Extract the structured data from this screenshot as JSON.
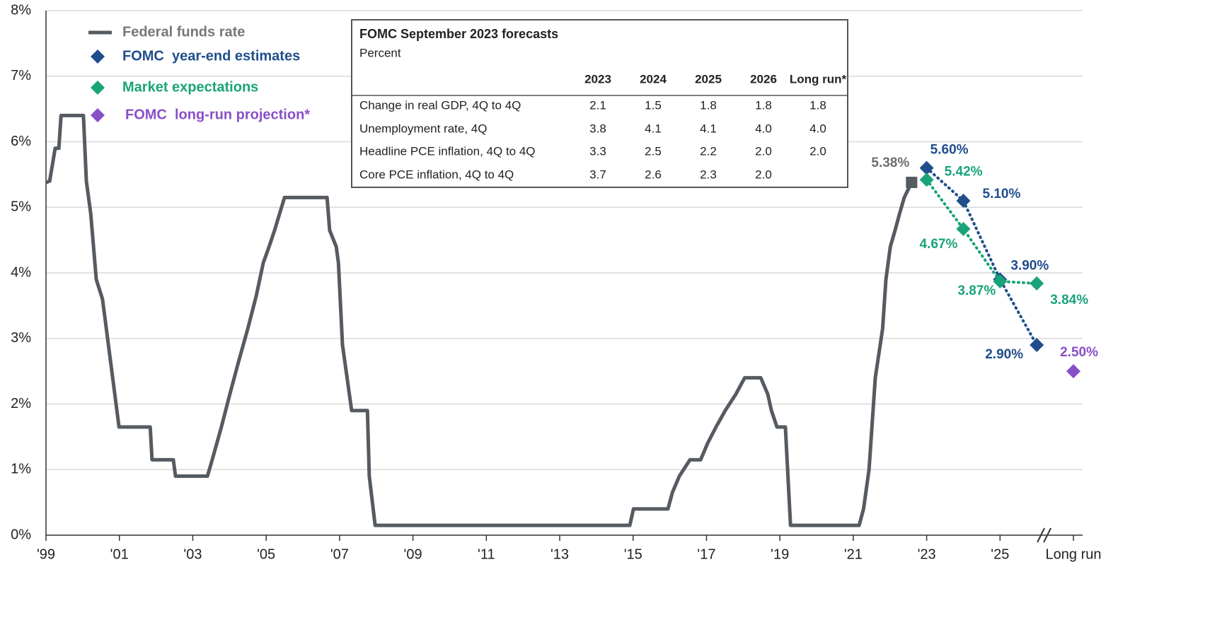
{
  "chart_data": {
    "type": "line",
    "xlim": [
      1999,
      2027.25
    ],
    "xticks": [
      {
        "value": 1999,
        "label": "'99"
      },
      {
        "value": 2001,
        "label": "'01"
      },
      {
        "value": 2003,
        "label": "'03"
      },
      {
        "value": 2005,
        "label": "'05"
      },
      {
        "value": 2007,
        "label": "'07"
      },
      {
        "value": 2009,
        "label": "'09"
      },
      {
        "value": 2011,
        "label": "'11"
      },
      {
        "value": 2013,
        "label": "'13"
      },
      {
        "value": 2015,
        "label": "'15"
      },
      {
        "value": 2017,
        "label": "'17"
      },
      {
        "value": 2019,
        "label": "'19"
      },
      {
        "value": 2021,
        "label": "'21"
      },
      {
        "value": 2023,
        "label": "'23"
      },
      {
        "value": 2025,
        "label": "'25"
      },
      {
        "value": 2027,
        "label": "Long run"
      }
    ],
    "ylim": [
      0,
      8
    ],
    "yticks": [
      {
        "value": 0,
        "label": "0%"
      },
      {
        "value": 1,
        "label": "1%"
      },
      {
        "value": 2,
        "label": "2%"
      },
      {
        "value": 3,
        "label": "3%"
      },
      {
        "value": 4,
        "label": "4%"
      },
      {
        "value": 5,
        "label": "5%"
      },
      {
        "value": 6,
        "label": "6%"
      },
      {
        "value": 7,
        "label": "7%"
      },
      {
        "value": 8,
        "label": "8%"
      }
    ],
    "grid": true,
    "legend": "top-left",
    "series": [
      {
        "name": "Federal funds rate",
        "color": "#555b61",
        "style": "line",
        "x": [
          1999.0,
          1999.1,
          1999.25,
          1999.35,
          1999.41,
          2000.02,
          2000.1,
          2000.22,
          2000.37,
          2000.54,
          2000.99,
          2001.84,
          2001.89,
          2002.47,
          2002.53,
          2003.4,
          2003.53,
          2003.78,
          2004.01,
          2004.25,
          2004.5,
          2004.73,
          2004.92,
          2005.08,
          2005.23,
          2005.5,
          2006.66,
          2006.73,
          2006.91,
          2006.97,
          2007.08,
          2007.33,
          2007.76,
          2007.81,
          2007.97,
          2014.91,
          2015.01,
          2015.95,
          2016.07,
          2016.26,
          2016.55,
          2016.84,
          2017.03,
          2017.26,
          2017.51,
          2017.8,
          2018.04,
          2018.48,
          2018.67,
          2018.77,
          2018.92,
          2019.15,
          2019.29,
          2021.16,
          2021.28,
          2021.43,
          2021.6,
          2021.8,
          2021.89,
          2022.01,
          2022.14,
          2022.26,
          2022.39,
          2022.59
        ],
        "values": [
          5.38,
          5.4,
          5.9,
          5.9,
          6.4,
          6.4,
          5.4,
          4.9,
          3.9,
          3.6,
          1.65,
          1.65,
          1.15,
          1.15,
          0.9,
          0.9,
          1.15,
          1.65,
          2.15,
          2.65,
          3.15,
          3.65,
          4.15,
          4.4,
          4.65,
          5.15,
          5.15,
          4.65,
          4.4,
          4.15,
          2.9,
          1.9,
          1.9,
          0.9,
          0.15,
          0.15,
          0.4,
          0.4,
          0.65,
          0.9,
          1.15,
          1.15,
          1.4,
          1.65,
          1.9,
          2.15,
          2.4,
          2.4,
          2.15,
          1.9,
          1.65,
          1.65,
          0.15,
          0.15,
          0.4,
          1.0,
          2.4,
          3.15,
          3.9,
          4.4,
          4.65,
          4.9,
          5.15,
          5.38
        ],
        "last_label": "5.38%"
      },
      {
        "name": "FOMC  year-end estimates",
        "color": "#1f4e8c",
        "style": "dotted",
        "x": [
          2023,
          2024,
          2025,
          2026
        ],
        "values": [
          5.6,
          5.1,
          3.9,
          2.9
        ],
        "value_labels": [
          "5.60%",
          "5.10%",
          "3.90%",
          "2.90%"
        ]
      },
      {
        "name": "Market expectations",
        "color": "#1aa37a",
        "style": "dotted",
        "x": [
          2023,
          2024,
          2025,
          2026
        ],
        "values": [
          5.42,
          4.67,
          3.87,
          3.84
        ],
        "value_labels": [
          "5.42%",
          "4.67%",
          "3.87%",
          "3.84%"
        ]
      },
      {
        "name": "FOMC  long-run projection*",
        "color": "#8a4fc7",
        "style": "point",
        "x": [
          2027
        ],
        "values": [
          2.5
        ],
        "value_labels": [
          "2.50%"
        ]
      }
    ],
    "table": {
      "title": "FOMC September 2023 forecasts",
      "subtitle": "Percent",
      "columns": [
        "2023",
        "2024",
        "2025",
        "2026",
        "Long run*"
      ],
      "rows": [
        {
          "label": "Change in real GDP, 4Q to 4Q",
          "cells": [
            "2.1",
            "1.5",
            "1.8",
            "1.8",
            "1.8"
          ]
        },
        {
          "label": "Unemployment rate, 4Q",
          "cells": [
            "3.8",
            "4.1",
            "4.1",
            "4.0",
            "4.0"
          ]
        },
        {
          "label": "Headline PCE inflation, 4Q to 4Q",
          "cells": [
            "3.3",
            "2.5",
            "2.2",
            "2.0",
            "2.0"
          ]
        },
        {
          "label": "Core PCE inflation, 4Q to 4Q",
          "cells": [
            "3.7",
            "2.6",
            "2.3",
            "2.0"
          ]
        }
      ]
    }
  }
}
